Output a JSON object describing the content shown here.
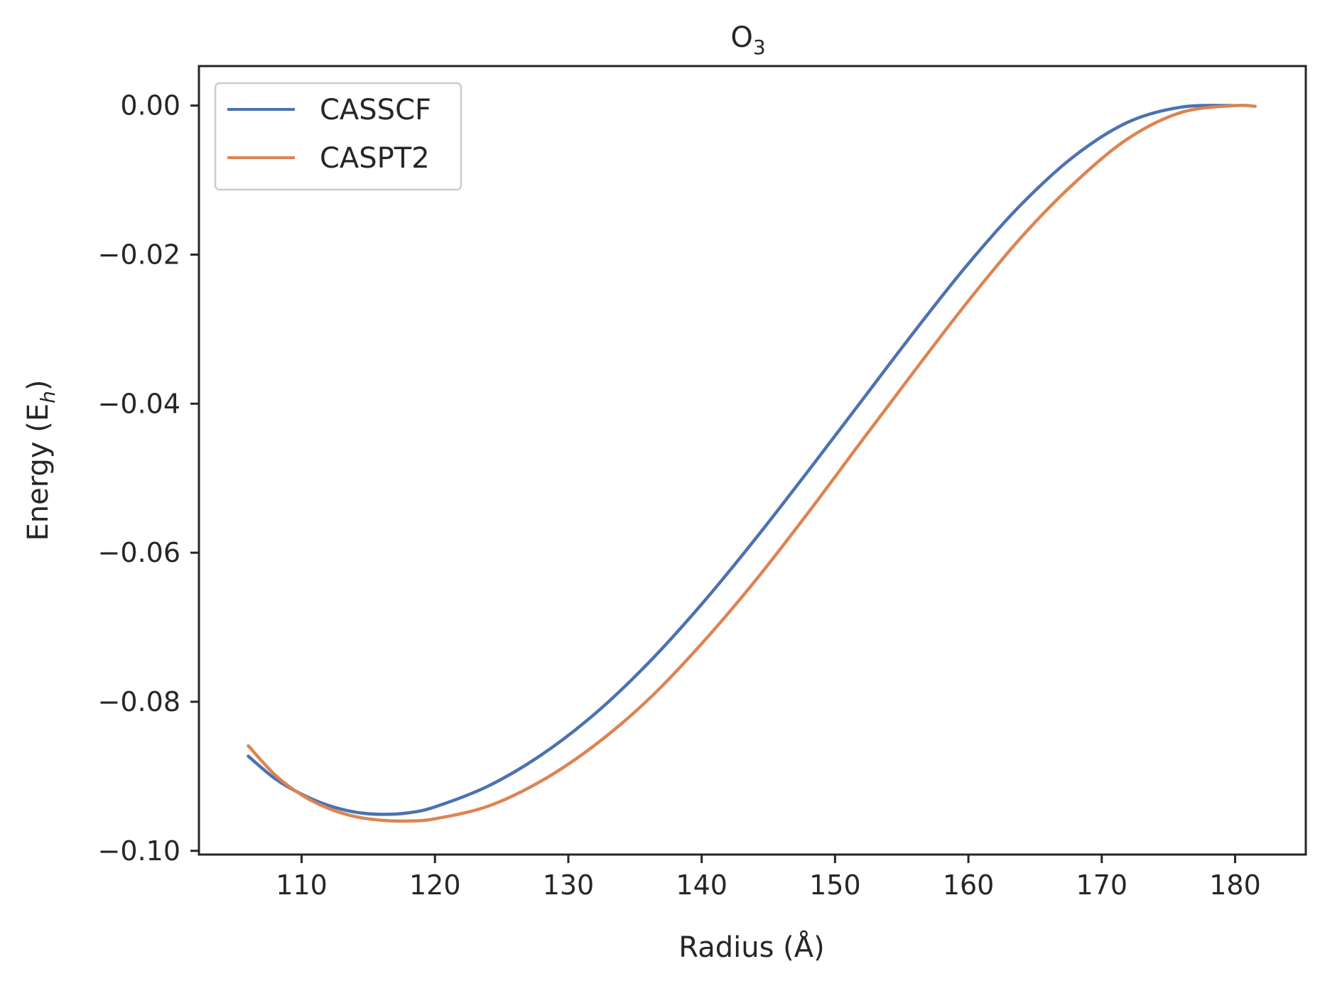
{
  "chart_data": {
    "type": "line",
    "title": "O",
    "title_subscript": "3",
    "xlabel": "Radius (Å)",
    "ylabel": "Energy (E",
    "ylabel_subscript": "h",
    "ylabel_close": ")",
    "xlim": [
      102.3,
      185.3
    ],
    "ylim": [
      -0.1005,
      0.0053
    ],
    "xticks": [
      110,
      120,
      130,
      140,
      150,
      160,
      170,
      180
    ],
    "xtick_labels": [
      "110",
      "120",
      "130",
      "140",
      "150",
      "160",
      "170",
      "180"
    ],
    "yticks": [
      0.0,
      -0.02,
      -0.04,
      -0.06,
      -0.08,
      -0.1
    ],
    "ytick_labels": [
      "0.00",
      "−0.02",
      "−0.04",
      "−0.06",
      "−0.08",
      "−0.10"
    ],
    "grid": false,
    "legend_position": "top-left",
    "series": [
      {
        "name": "CASSCF",
        "color": "#4c72b0",
        "x": [
          106,
          108,
          110,
          112,
          114,
          116,
          118,
          120,
          124,
          128,
          132,
          136,
          140,
          144,
          148,
          152,
          156,
          160,
          164,
          168,
          172,
          176,
          180
        ],
        "y": [
          -0.0873,
          -0.0903,
          -0.0924,
          -0.0939,
          -0.0948,
          -0.0951,
          -0.0949,
          -0.0941,
          -0.0913,
          -0.0871,
          -0.0816,
          -0.0748,
          -0.0669,
          -0.0582,
          -0.049,
          -0.0396,
          -0.0302,
          -0.0212,
          -0.0132,
          -0.0067,
          -0.0022,
          -0.0002,
          0.0
        ]
      },
      {
        "name": "CASPT2",
        "color": "#dd8452",
        "x": [
          106,
          108,
          110,
          112,
          114,
          116,
          118,
          120,
          124,
          128,
          132,
          136,
          140,
          144,
          148,
          152,
          156,
          160,
          164,
          168,
          172,
          176,
          180,
          181.5
        ],
        "y": [
          -0.0859,
          -0.0898,
          -0.0925,
          -0.0943,
          -0.0954,
          -0.0959,
          -0.096,
          -0.0957,
          -0.094,
          -0.0906,
          -0.0858,
          -0.0797,
          -0.0722,
          -0.0638,
          -0.0546,
          -0.045,
          -0.0355,
          -0.0262,
          -0.0176,
          -0.0103,
          -0.0044,
          -0.0009,
          0.0,
          -0.0001
        ]
      }
    ]
  }
}
